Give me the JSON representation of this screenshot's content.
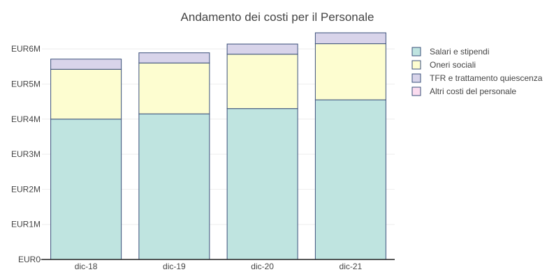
{
  "chart_data": {
    "type": "bar",
    "stacked": true,
    "title": "Andamento dei costi per il Personale",
    "xlabel": "",
    "ylabel": "",
    "categories": [
      "dic-18",
      "dic-19",
      "dic-20",
      "dic-21"
    ],
    "ylim": [
      0,
      6500000
    ],
    "yticks": [
      {
        "value": 0,
        "label": "EUR0"
      },
      {
        "value": 1000000,
        "label": "EUR1M"
      },
      {
        "value": 2000000,
        "label": "EUR2M"
      },
      {
        "value": 3000000,
        "label": "EUR3M"
      },
      {
        "value": 4000000,
        "label": "EUR4M"
      },
      {
        "value": 5000000,
        "label": "EUR5M"
      },
      {
        "value": 6000000,
        "label": "EUR6M"
      }
    ],
    "grid": true,
    "legend_position": "right",
    "series": [
      {
        "name": "Salari e stipendi",
        "color": "#bfe4e0",
        "values": [
          4000000,
          4150000,
          4300000,
          4550000
        ]
      },
      {
        "name": "Oneri sociali",
        "color": "#fdfdd0",
        "values": [
          1420000,
          1450000,
          1550000,
          1600000
        ]
      },
      {
        "name": "TFR e trattamento quiescenza",
        "color": "#d8d4ea",
        "values": [
          290000,
          290000,
          290000,
          310000
        ]
      },
      {
        "name": "Altri costi del personale",
        "color": "#fbdcef",
        "values": [
          0,
          0,
          0,
          0
        ]
      }
    ],
    "bar_stroke": "#3a4f7a"
  }
}
